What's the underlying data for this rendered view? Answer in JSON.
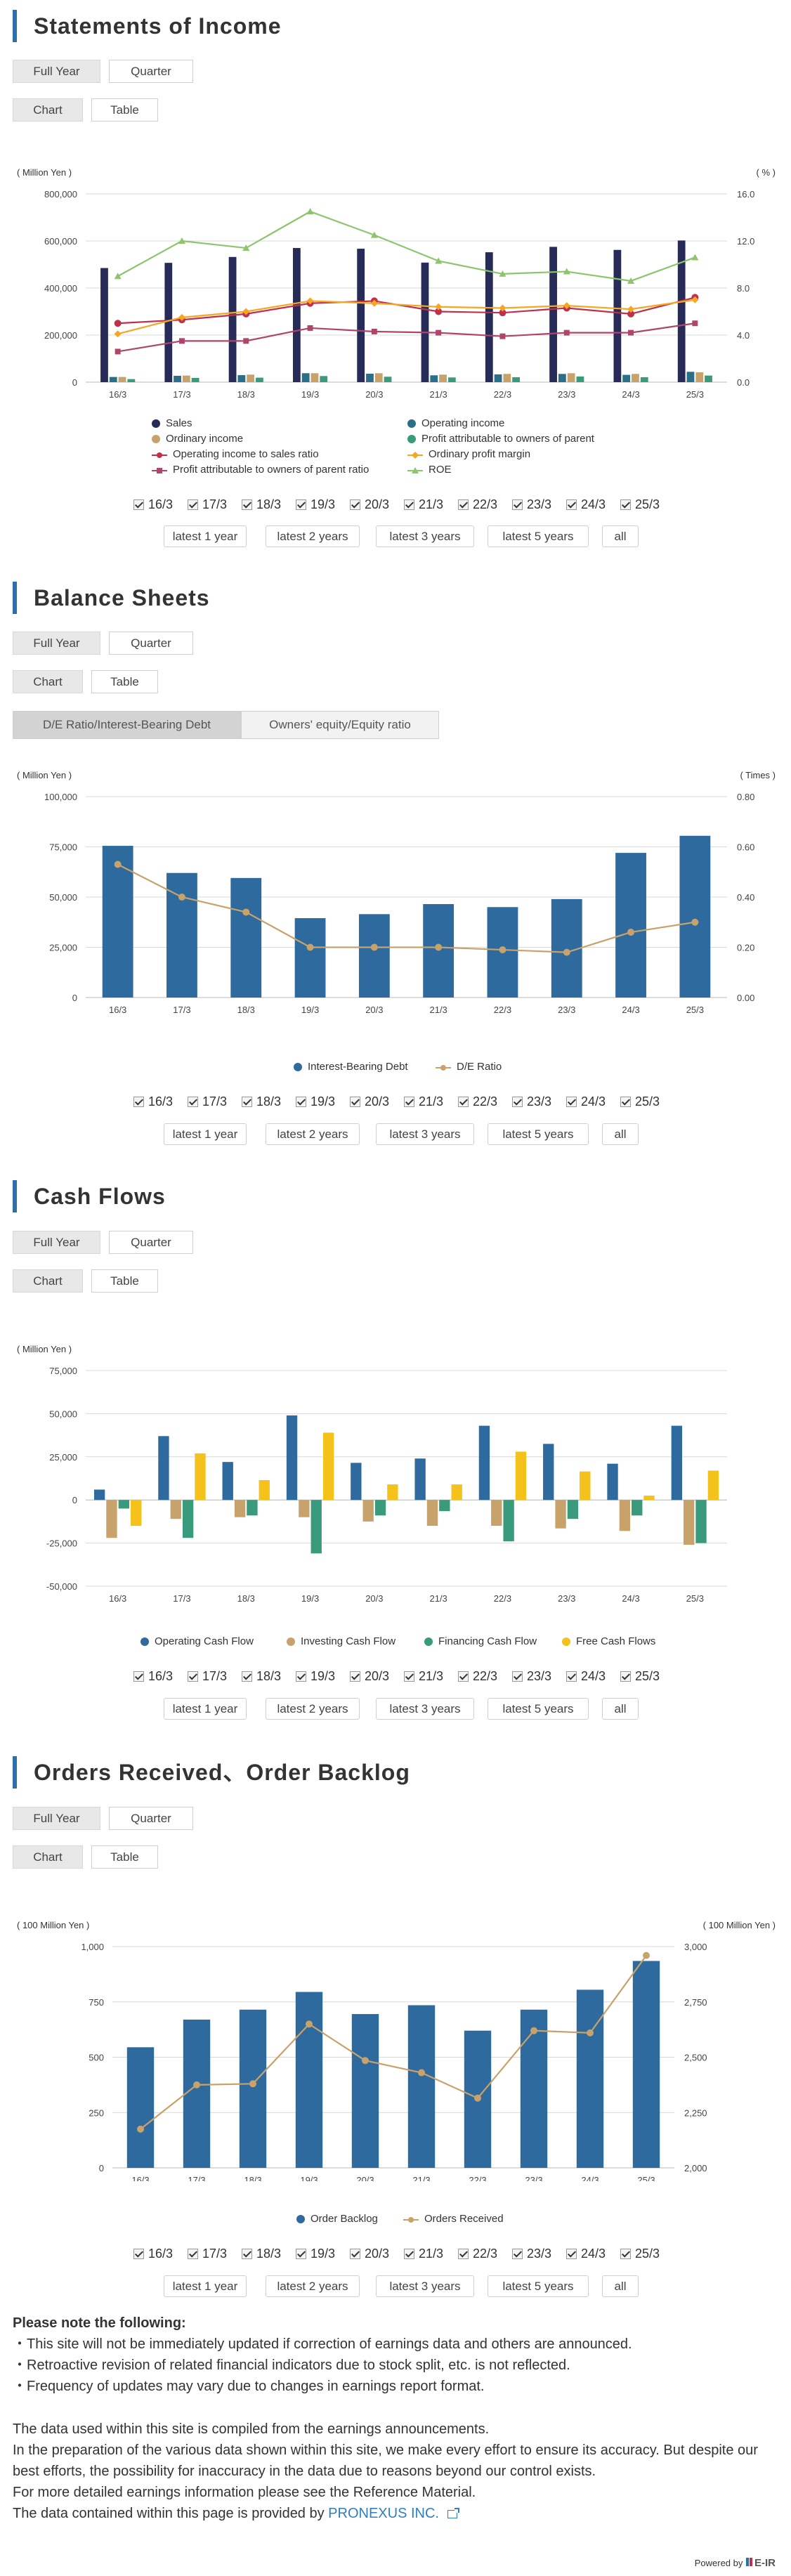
{
  "sections": {
    "income": {
      "title": "Statements of Income",
      "period_tabs": [
        "Full Year",
        "Quarter"
      ],
      "view_tabs": [
        "Chart",
        "Table"
      ],
      "period_buttons": [
        "latest 1 year",
        "latest 2 years",
        "latest 3 years",
        "latest 5 years",
        "all"
      ]
    },
    "balance": {
      "title": "Balance Sheets",
      "period_tabs": [
        "Full Year",
        "Quarter"
      ],
      "view_tabs": [
        "Chart",
        "Table"
      ],
      "sub_tabs": [
        "D/E Ratio/Interest-Bearing Debt",
        "Owners' equity/Equity ratio"
      ],
      "period_buttons": [
        "latest 1 year",
        "latest 2 years",
        "latest 3 years",
        "latest 5 years",
        "all"
      ]
    },
    "cashflow": {
      "title": "Cash Flows",
      "period_tabs": [
        "Full Year",
        "Quarter"
      ],
      "view_tabs": [
        "Chart",
        "Table"
      ],
      "period_buttons": [
        "latest 1 year",
        "latest 2 years",
        "latest 3 years",
        "latest 5 years",
        "all"
      ]
    },
    "orders": {
      "title": "Orders Received、Order Backlog",
      "period_tabs": [
        "Full Year",
        "Quarter"
      ],
      "view_tabs": [
        "Chart",
        "Table"
      ],
      "period_buttons": [
        "latest 1 year",
        "latest 2 years",
        "latest 3 years",
        "latest 5 years",
        "all"
      ]
    }
  },
  "colors": {
    "navy": "#262b57",
    "teal": "#2a6f87",
    "tan": "#c7a36b",
    "green": "#3a9a7c",
    "red": "#c0304b",
    "orange": "#f5a623",
    "purple": "#b0456b",
    "lime": "#8cc56c",
    "blue": "#2f6a9e",
    "gold": "#f5c21b",
    "accent": "#2f6fa8"
  },
  "chart_data": [
    {
      "id": "income",
      "type": "bar+line",
      "categories": [
        "16/3",
        "17/3",
        "18/3",
        "19/3",
        "20/3",
        "21/3",
        "22/3",
        "23/3",
        "24/3",
        "25/3"
      ],
      "y_left_unit": "( Million Yen )",
      "y_right_unit": "( % )",
      "y_left_ticks": [
        "0",
        "200,000",
        "400,000",
        "600,000",
        "800,000"
      ],
      "y_right_ticks": [
        "0.0",
        "4.0",
        "8.0",
        "12.0",
        "16.0"
      ],
      "ylim_left": [
        0,
        800000
      ],
      "ylim_right": [
        0,
        16
      ],
      "bar_series": [
        {
          "name": "Sales",
          "color": "#262b57",
          "values": [
            485000,
            507000,
            532000,
            570000,
            567000,
            508000,
            552000,
            575000,
            562000,
            602000
          ]
        },
        {
          "name": "Operating income",
          "color": "#2a6f87",
          "values": [
            22000,
            27000,
            30000,
            38000,
            36000,
            29000,
            33000,
            35000,
            31000,
            44000
          ]
        },
        {
          "name": "Ordinary income",
          "color": "#c7a36b",
          "values": [
            22000,
            28000,
            32000,
            38000,
            38000,
            32000,
            35000,
            38000,
            35000,
            42000
          ]
        },
        {
          "name": "Profit attributable to owners of parent",
          "color": "#3a9a7c",
          "values": [
            13000,
            18000,
            19000,
            26000,
            23000,
            20000,
            21000,
            24000,
            21000,
            28000
          ]
        }
      ],
      "line_series": [
        {
          "name": "Operating income to sales ratio",
          "color": "#c0304b",
          "marker": "circle",
          "values": [
            5.0,
            5.3,
            5.8,
            6.7,
            6.9,
            6.0,
            5.9,
            6.3,
            5.8,
            7.2
          ]
        },
        {
          "name": "Ordinary profit margin",
          "color": "#f5a623",
          "marker": "diamond",
          "values": [
            4.1,
            5.5,
            6.0,
            6.9,
            6.7,
            6.4,
            6.3,
            6.5,
            6.2,
            7.0
          ]
        },
        {
          "name": "Profit attributable to owners of parent ratio",
          "color": "#b0456b",
          "marker": "square",
          "values": [
            2.6,
            3.5,
            3.5,
            4.6,
            4.3,
            4.2,
            3.9,
            4.2,
            4.2,
            5.0
          ]
        },
        {
          "name": "ROE",
          "color": "#8cc56c",
          "marker": "triangle",
          "values": [
            9.0,
            12.0,
            11.4,
            14.5,
            12.5,
            10.3,
            9.2,
            9.4,
            8.6,
            10.6
          ]
        }
      ],
      "legend_order": [
        "Sales",
        "Operating income",
        "Ordinary income",
        "Profit attributable to owners of parent",
        "Operating income to sales ratio",
        "Ordinary profit margin",
        "Profit attributable to owners of parent ratio",
        "ROE"
      ]
    },
    {
      "id": "balance",
      "type": "bar+line",
      "categories": [
        "16/3",
        "17/3",
        "18/3",
        "19/3",
        "20/3",
        "21/3",
        "22/3",
        "23/3",
        "24/3",
        "25/3"
      ],
      "y_left_unit": "( Million Yen )",
      "y_right_unit": "( Times )",
      "y_left_ticks": [
        "0",
        "25,000",
        "50,000",
        "75,000",
        "100,000"
      ],
      "y_right_ticks": [
        "0.00",
        "0.20",
        "0.40",
        "0.60",
        "0.80"
      ],
      "ylim_left": [
        0,
        100000
      ],
      "ylim_right": [
        0,
        0.8
      ],
      "bar_series": [
        {
          "name": "Interest-Bearing Debt",
          "color": "#2f6a9e",
          "values": [
            75500,
            62000,
            59500,
            39500,
            41500,
            46500,
            45000,
            49000,
            72000,
            80500
          ]
        }
      ],
      "line_series": [
        {
          "name": "D/E Ratio",
          "color": "#c7a36b",
          "marker": "circle",
          "values": [
            0.53,
            0.4,
            0.34,
            0.2,
            0.2,
            0.2,
            0.19,
            0.18,
            0.26,
            0.3
          ]
        }
      ],
      "legend_order": [
        "Interest-Bearing Debt",
        "D/E Ratio"
      ]
    },
    {
      "id": "cashflow",
      "type": "bar",
      "categories": [
        "16/3",
        "17/3",
        "18/3",
        "19/3",
        "20/3",
        "21/3",
        "22/3",
        "23/3",
        "24/3",
        "25/3"
      ],
      "y_left_unit": "( Million Yen )",
      "y_left_ticks": [
        "-50,000",
        "-25,000",
        "0",
        "25,000",
        "50,000",
        "75,000"
      ],
      "ylim_left": [
        -50000,
        75000
      ],
      "bar_series": [
        {
          "name": "Operating Cash Flow",
          "color": "#2f6a9e",
          "values": [
            6000,
            37000,
            22000,
            49000,
            21500,
            24000,
            43000,
            32500,
            21000,
            43000
          ]
        },
        {
          "name": "Investing Cash Flow",
          "color": "#c7a36b",
          "values": [
            -22000,
            -11000,
            -10000,
            -10000,
            -12500,
            -15000,
            -15000,
            -16500,
            -18000,
            -26000
          ]
        },
        {
          "name": "Financing Cash Flow",
          "color": "#3a9a7c",
          "values": [
            -5000,
            -22000,
            -9000,
            -31000,
            -9000,
            -6500,
            -24000,
            -11000,
            -9000,
            -25000
          ]
        },
        {
          "name": "Free Cash Flows",
          "color": "#f5c21b",
          "values": [
            -15000,
            27000,
            11500,
            39000,
            9000,
            9000,
            28000,
            16500,
            2500,
            17000
          ]
        }
      ],
      "legend_order": [
        "Operating Cash Flow",
        "Investing Cash Flow",
        "Financing Cash Flow",
        "Free Cash Flows"
      ]
    },
    {
      "id": "orders",
      "type": "bar+line",
      "categories": [
        "16/3",
        "17/3",
        "18/3",
        "19/3",
        "20/3",
        "21/3",
        "22/3",
        "23/3",
        "24/3",
        "25/3"
      ],
      "y_left_unit": "( 100 Million Yen )",
      "y_right_unit": "( 100 Million Yen )",
      "y_left_ticks": [
        "0",
        "250",
        "500",
        "750",
        "1,000"
      ],
      "y_right_ticks": [
        "2,000",
        "2,250",
        "2,500",
        "2,750",
        "3,000"
      ],
      "ylim_left": [
        0,
        1000
      ],
      "ylim_right": [
        2000,
        3000
      ],
      "bar_series": [
        {
          "name": "Order Backlog",
          "color": "#2f6a9e",
          "values": [
            545,
            670,
            715,
            795,
            695,
            735,
            620,
            715,
            805,
            935
          ]
        }
      ],
      "line_series": [
        {
          "name": "Orders Received",
          "color": "#c7a36b",
          "marker": "circle",
          "values": [
            2175,
            2375,
            2380,
            2650,
            2485,
            2430,
            2315,
            2620,
            2610,
            2960
          ]
        }
      ],
      "legend_order": [
        "Order Backlog",
        "Orders Received"
      ]
    }
  ],
  "notes": {
    "title": "Please note the following:",
    "items": [
      "・This site will not be immediately updated if correction of earnings data and others are announced.",
      "・Retroactive revision of related financial indicators due to stock split, etc. is not reflected.",
      "・Frequency of updates may vary due to changes in earnings report format."
    ]
  },
  "footer": {
    "lines": [
      "The data used within this site is compiled from the earnings announcements.",
      "In the preparation of the various data shown within this site, we make every effort to ensure its accuracy. But despite our best efforts, the possibility for inaccuracy in the data due to reasons beyond our control exists.",
      "For more detailed earnings information please see the Reference Material."
    ],
    "provided_prefix": "The data contained within this page is provided by ",
    "provider": "PRONEXUS INC.",
    "powered_by": "Powered by",
    "brand": "E-IR"
  }
}
